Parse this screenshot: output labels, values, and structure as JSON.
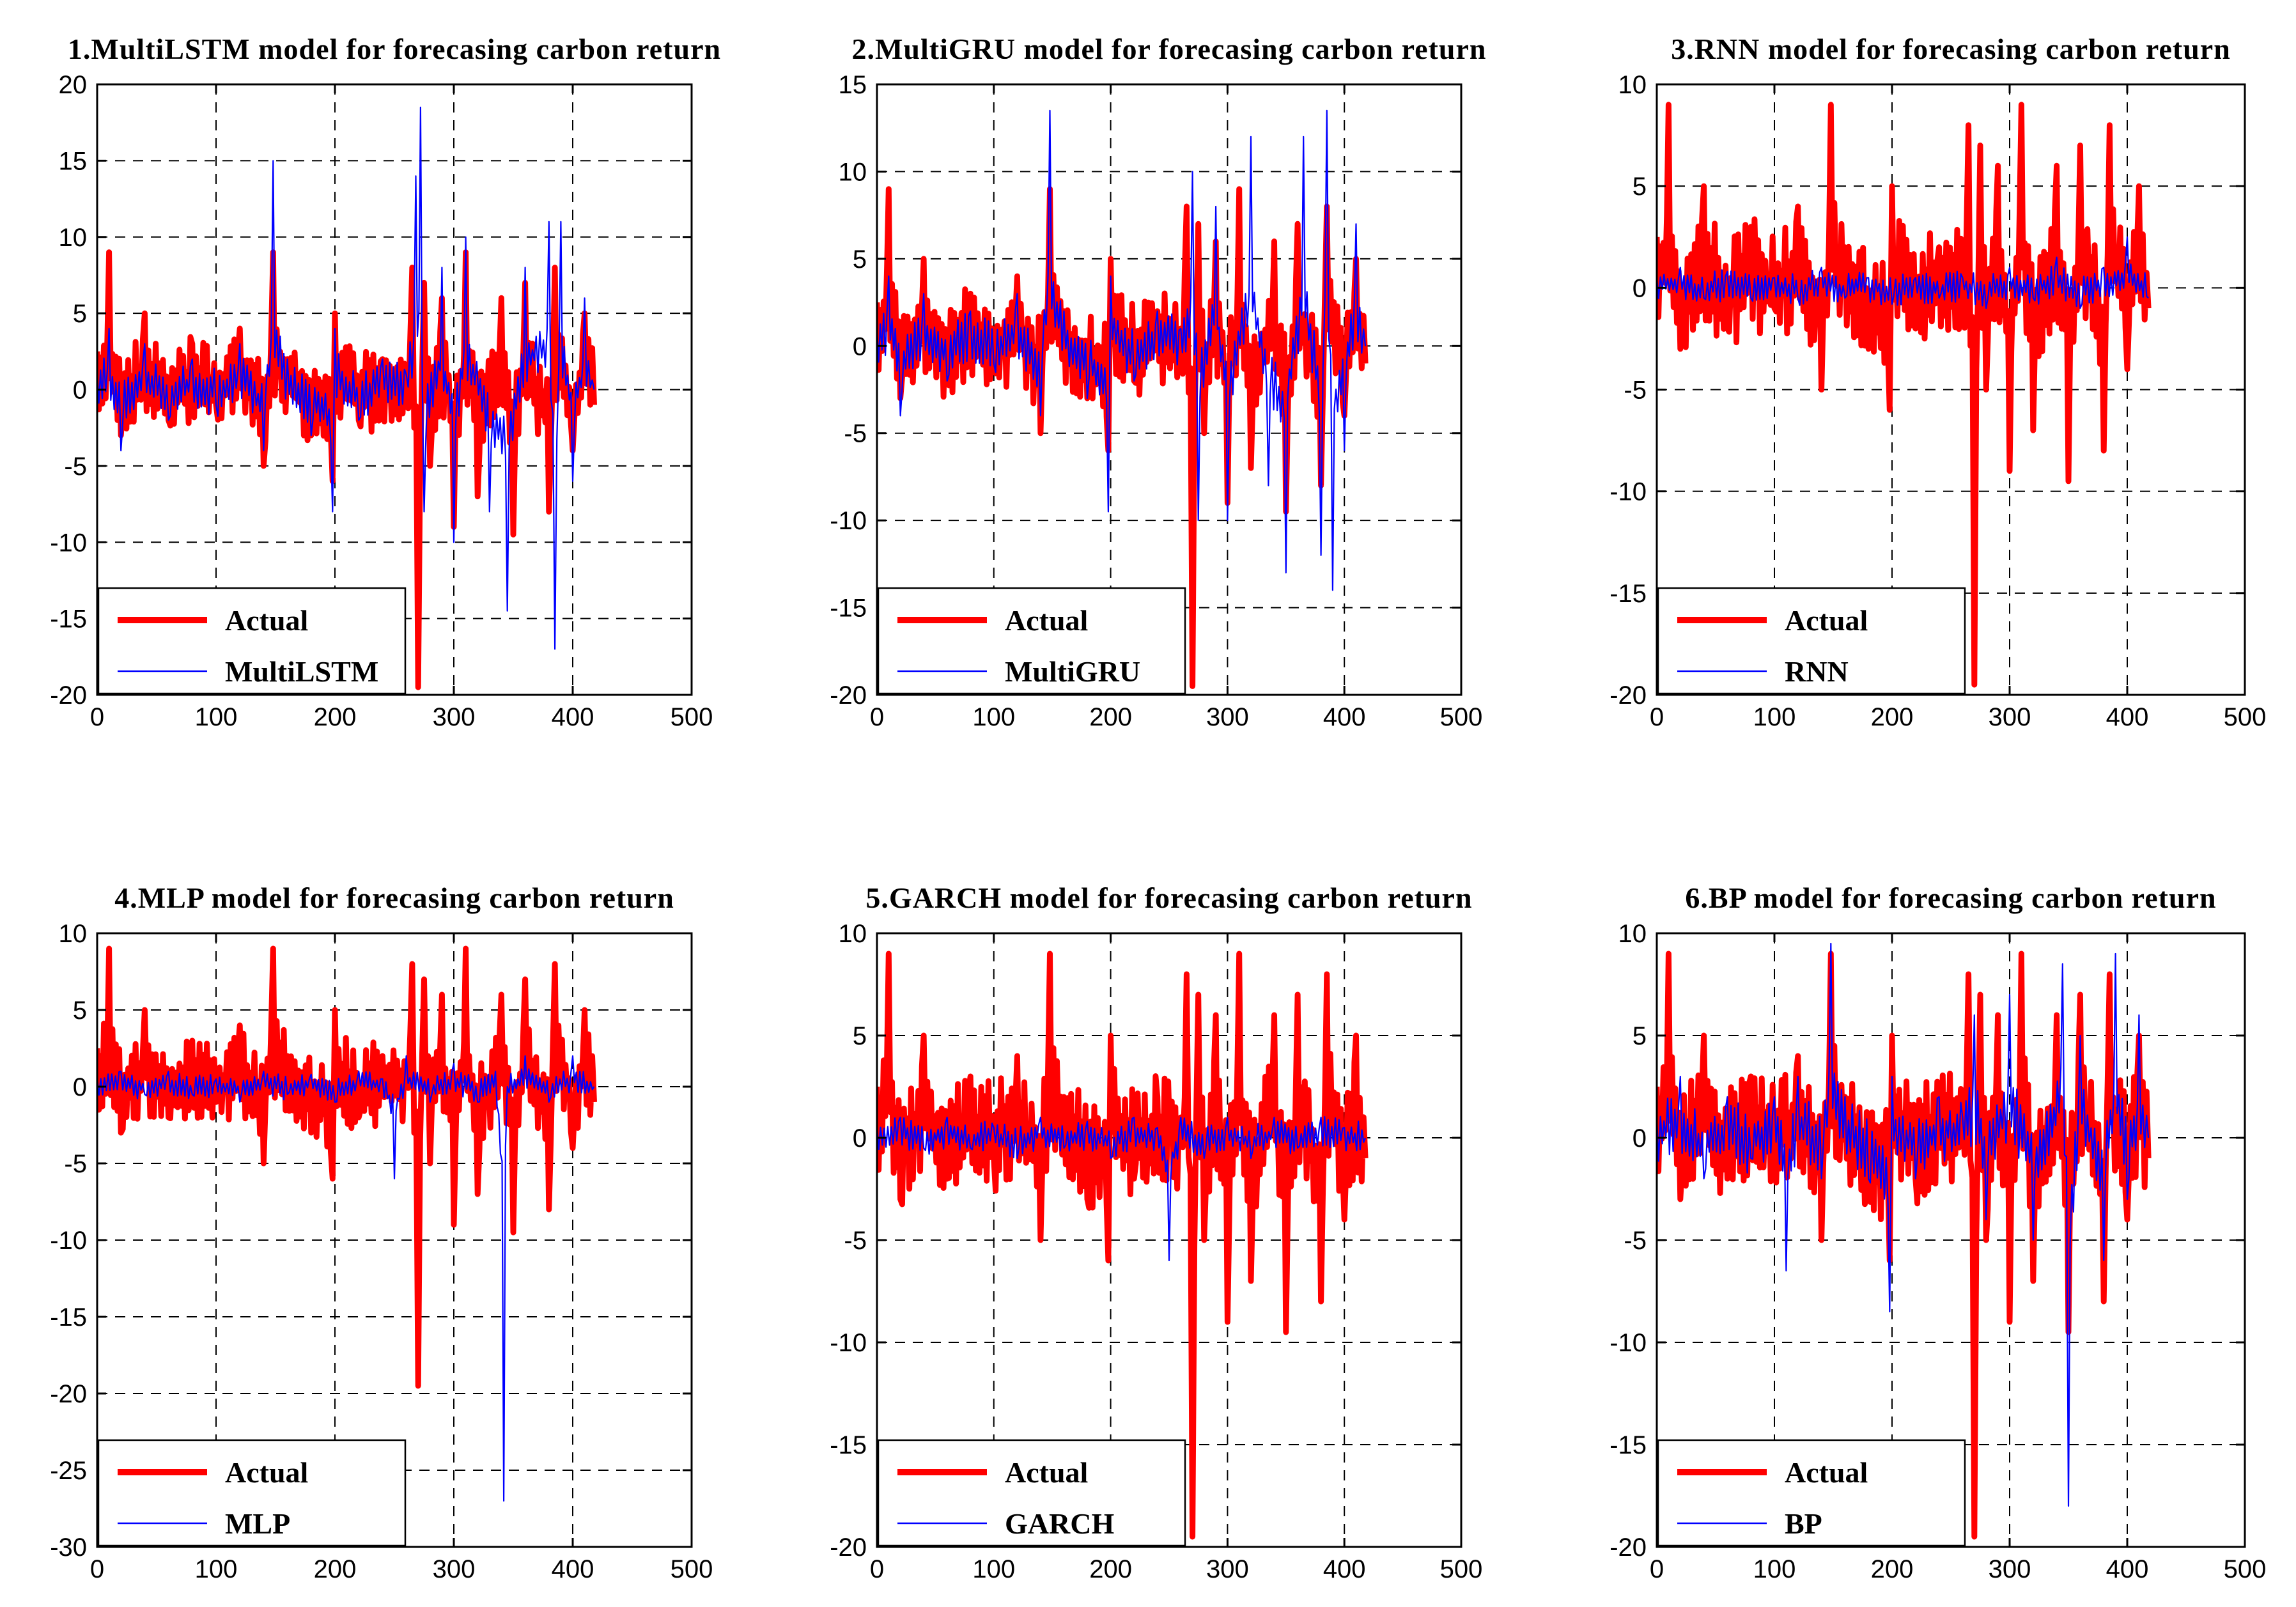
{
  "figure": {
    "colors": {
      "actual": "#ff0000",
      "model": "#0000ff",
      "grid": "#000000",
      "axis": "#000000"
    }
  },
  "chart_data": [
    {
      "type": "line",
      "title": "1.MultiLSTM model for forecasing carbon return",
      "xlim": [
        0,
        500
      ],
      "ylim": [
        -20,
        20
      ],
      "xticks": [
        0,
        100,
        200,
        300,
        400,
        500
      ],
      "yticks": [
        -20,
        -15,
        -10,
        -5,
        0,
        5,
        10,
        15,
        20
      ],
      "legend": [
        "Actual",
        "MultiLSTM"
      ],
      "series": [
        {
          "name": "Actual",
          "x": [
            0,
            10,
            20,
            40,
            60,
            80,
            100,
            120,
            140,
            148,
            160,
            180,
            198,
            200,
            220,
            240,
            260,
            265,
            270,
            275,
            280,
            290,
            300,
            310,
            320,
            340,
            350,
            360,
            380,
            385,
            400,
            410,
            418
          ],
          "values": [
            2.5,
            9,
            -3,
            5,
            -2,
            3,
            -1,
            4,
            -5,
            9,
            2,
            -3,
            -6,
            5,
            -2,
            2,
            1,
            8,
            -19.5,
            7,
            -5,
            6,
            -9,
            9,
            -7,
            6,
            -9.5,
            7,
            -8,
            8,
            -4,
            5,
            -1
          ]
        },
        {
          "name": "MultiLSTM",
          "x": [
            0,
            10,
            20,
            40,
            60,
            80,
            100,
            120,
            140,
            148,
            160,
            180,
            198,
            200,
            220,
            240,
            260,
            268,
            272,
            275,
            290,
            300,
            310,
            330,
            345,
            360,
            380,
            385,
            390,
            400,
            410,
            418
          ],
          "values": [
            1,
            4,
            -4,
            3,
            -2,
            2,
            -1,
            3,
            -4,
            15,
            2,
            -3,
            -8,
            4,
            -2,
            2,
            1,
            14,
            18.5,
            -8,
            8,
            -10,
            10,
            -8,
            -14.5,
            8,
            11,
            -17,
            11,
            -6,
            6,
            0
          ]
        }
      ]
    },
    {
      "type": "line",
      "title": "2.MultiGRU model for forecasing carbon return",
      "xlim": [
        0,
        500
      ],
      "ylim": [
        -20,
        15
      ],
      "xticks": [
        0,
        100,
        200,
        300,
        400,
        500
      ],
      "yticks": [
        -20,
        -15,
        -10,
        -5,
        0,
        5,
        10,
        15
      ],
      "legend": [
        "Actual",
        "MultiGRU"
      ],
      "series": [
        {
          "name": "Actual",
          "x": [
            0,
            10,
            20,
            40,
            60,
            80,
            100,
            120,
            140,
            148,
            160,
            180,
            198,
            200,
            220,
            240,
            260,
            265,
            270,
            275,
            280,
            290,
            300,
            310,
            320,
            340,
            350,
            360,
            380,
            385,
            400,
            410,
            418
          ],
          "values": [
            2.5,
            9,
            -3,
            5,
            -2,
            3,
            -1,
            4,
            -5,
            9,
            2,
            -3,
            -6,
            5,
            -2,
            2,
            1,
            8,
            -19.5,
            7,
            -5,
            6,
            -9,
            9,
            -7,
            6,
            -9.5,
            7,
            -8,
            8,
            -4,
            5,
            -1
          ]
        },
        {
          "name": "MultiGRU",
          "x": [
            0,
            10,
            20,
            40,
            60,
            80,
            100,
            120,
            140,
            148,
            160,
            180,
            198,
            200,
            220,
            240,
            260,
            270,
            275,
            290,
            300,
            320,
            335,
            350,
            365,
            380,
            385,
            390,
            400,
            410,
            418
          ],
          "values": [
            1,
            4,
            -4,
            3,
            -2,
            2,
            -1,
            3,
            -4,
            13.5,
            2,
            -3,
            -9.5,
            4,
            -2,
            2,
            1,
            10,
            -10,
            8,
            -10,
            12,
            -8,
            -13,
            12,
            -12,
            13.5,
            -14,
            -6,
            7,
            0
          ]
        }
      ]
    },
    {
      "type": "line",
      "title": "3.RNN model for forecasing carbon return",
      "xlim": [
        0,
        500
      ],
      "ylim": [
        -20,
        10
      ],
      "xticks": [
        0,
        100,
        200,
        300,
        400,
        500
      ],
      "yticks": [
        -20,
        -15,
        -10,
        -5,
        0,
        5,
        10
      ],
      "legend": [
        "Actual",
        "RNN"
      ],
      "series": [
        {
          "name": "Actual",
          "x": [
            0,
            10,
            20,
            40,
            60,
            80,
            100,
            120,
            140,
            148,
            160,
            180,
            198,
            200,
            220,
            240,
            260,
            265,
            270,
            275,
            280,
            290,
            300,
            310,
            320,
            340,
            350,
            360,
            380,
            385,
            400,
            410,
            418
          ],
          "values": [
            2.5,
            9,
            -3,
            5,
            -2,
            3,
            -1,
            4,
            -5,
            9,
            2,
            -3,
            -6,
            5,
            -2,
            2,
            1,
            8,
            -19.5,
            7,
            -5,
            6,
            -9,
            9,
            -7,
            6,
            -9.5,
            7,
            -8,
            8,
            -4,
            5,
            -1
          ]
        },
        {
          "name": "RNN",
          "x": [
            0,
            20,
            40,
            60,
            80,
            100,
            120,
            140,
            160,
            180,
            200,
            220,
            240,
            260,
            280,
            300,
            320,
            340,
            360,
            380,
            400,
            418
          ],
          "values": [
            0.5,
            1,
            -0.5,
            0.8,
            -0.5,
            0.5,
            -0.5,
            1,
            -0.5,
            0.5,
            -0.8,
            0.5,
            -0.5,
            0.5,
            -1,
            1,
            -0.5,
            1.5,
            -1,
            1,
            2.5,
            -0.5
          ]
        }
      ]
    },
    {
      "type": "line",
      "title": "4.MLP model for forecasing carbon return",
      "xlim": [
        0,
        500
      ],
      "ylim": [
        -30,
        10
      ],
      "xticks": [
        0,
        100,
        200,
        300,
        400,
        500
      ],
      "yticks": [
        -30,
        -25,
        -20,
        -15,
        -10,
        -5,
        0,
        5,
        10
      ],
      "legend": [
        "Actual",
        "MLP"
      ],
      "series": [
        {
          "name": "Actual",
          "x": [
            0,
            10,
            20,
            40,
            60,
            80,
            100,
            120,
            140,
            148,
            160,
            180,
            198,
            200,
            220,
            240,
            260,
            265,
            270,
            275,
            280,
            290,
            300,
            310,
            320,
            340,
            350,
            360,
            380,
            385,
            400,
            410,
            418
          ],
          "values": [
            2.5,
            9,
            -3,
            5,
            -2,
            3,
            -1,
            4,
            -5,
            9,
            2,
            -3,
            -6,
            5,
            -2,
            2,
            1,
            8,
            -19.5,
            7,
            -5,
            6,
            -9,
            9,
            -7,
            6,
            -9.5,
            7,
            -8,
            8,
            -4,
            5,
            -1
          ]
        },
        {
          "name": "MLP",
          "x": [
            0,
            20,
            40,
            60,
            80,
            100,
            120,
            140,
            160,
            180,
            200,
            220,
            240,
            250,
            260,
            280,
            300,
            320,
            335,
            342,
            345,
            360,
            380,
            400,
            418
          ],
          "values": [
            0.5,
            1,
            -0.5,
            1,
            -0.5,
            0.5,
            -1,
            1,
            -0.5,
            0.8,
            -1,
            1,
            0.5,
            -6,
            2,
            -1,
            1.5,
            -1,
            1,
            -27,
            0,
            2,
            -1,
            2,
            0
          ]
        }
      ]
    },
    {
      "type": "line",
      "title": "5.GARCH model for forecasing carbon return",
      "xlim": [
        0,
        500
      ],
      "ylim": [
        -20,
        10
      ],
      "xticks": [
        0,
        100,
        200,
        300,
        400,
        500
      ],
      "yticks": [
        -20,
        -15,
        -10,
        -5,
        0,
        5,
        10
      ],
      "legend": [
        "Actual",
        "GARCH"
      ],
      "series": [
        {
          "name": "Actual",
          "x": [
            0,
            10,
            20,
            40,
            60,
            80,
            100,
            120,
            140,
            148,
            160,
            180,
            198,
            200,
            220,
            240,
            260,
            265,
            270,
            275,
            280,
            290,
            300,
            310,
            320,
            340,
            350,
            360,
            380,
            385,
            400,
            410,
            418
          ],
          "values": [
            2.5,
            9,
            -3,
            5,
            -2,
            3,
            -1,
            4,
            -5,
            9,
            2,
            -3,
            -6,
            5,
            -2,
            2,
            1,
            8,
            -19.5,
            7,
            -5,
            6,
            -9,
            9,
            -7,
            6,
            -9.5,
            7,
            -8,
            8,
            -4,
            5,
            -1
          ]
        },
        {
          "name": "GARCH",
          "x": [
            0,
            20,
            40,
            60,
            80,
            100,
            120,
            140,
            160,
            180,
            200,
            220,
            240,
            250,
            260,
            280,
            300,
            320,
            340,
            360,
            380,
            400,
            418
          ],
          "values": [
            0.5,
            1,
            -0.5,
            1,
            -0.5,
            0.5,
            -1,
            1,
            -0.5,
            0.8,
            -1,
            1,
            0.5,
            -6,
            1,
            -1,
            1,
            -1,
            1,
            -0.5,
            1,
            0.5,
            0
          ]
        }
      ]
    },
    {
      "type": "line",
      "title": "6.BP model for forecasing carbon return",
      "xlim": [
        0,
        500
      ],
      "ylim": [
        -20,
        10
      ],
      "xticks": [
        0,
        100,
        200,
        300,
        400,
        500
      ],
      "yticks": [
        -20,
        -15,
        -10,
        -5,
        0,
        5,
        10
      ],
      "legend": [
        "Actual",
        "BP"
      ],
      "series": [
        {
          "name": "Actual",
          "x": [
            0,
            10,
            20,
            40,
            60,
            80,
            100,
            120,
            140,
            148,
            160,
            180,
            198,
            200,
            220,
            240,
            260,
            265,
            270,
            275,
            280,
            290,
            300,
            310,
            320,
            340,
            350,
            360,
            380,
            385,
            400,
            410,
            418
          ],
          "values": [
            2.5,
            9,
            -3,
            5,
            -2,
            3,
            -1,
            4,
            -5,
            9,
            2,
            -3,
            -6,
            5,
            -2,
            2,
            1,
            8,
            -19.5,
            7,
            -5,
            6,
            -9,
            9,
            -7,
            6,
            -9.5,
            7,
            -8,
            8,
            -4,
            5,
            -1
          ]
        },
        {
          "name": "BP",
          "x": [
            0,
            20,
            40,
            60,
            80,
            100,
            110,
            120,
            140,
            148,
            160,
            180,
            198,
            200,
            220,
            240,
            260,
            270,
            280,
            300,
            320,
            345,
            350,
            360,
            380,
            390,
            400,
            410,
            418
          ],
          "values": [
            1,
            3,
            -2,
            2,
            -1,
            2,
            -6.5,
            3,
            -2,
            9.5,
            2,
            -2,
            -8.5,
            3,
            -2,
            2,
            1,
            6,
            -4,
            7,
            -5,
            8.5,
            -18,
            5,
            -6,
            9,
            -3,
            6,
            0
          ]
        }
      ]
    }
  ]
}
